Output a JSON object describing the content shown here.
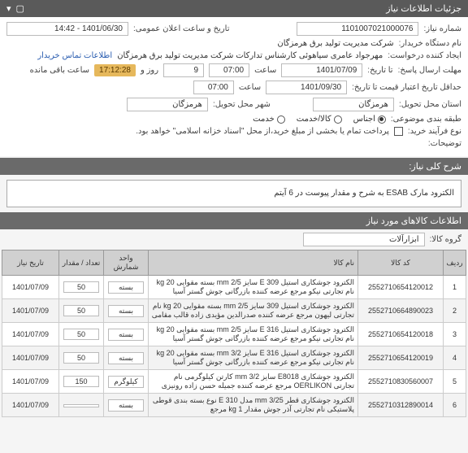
{
  "header": {
    "title": "جزئیات اطلاعات نیاز"
  },
  "form": {
    "need_no_label": "شماره نیاز:",
    "need_no": "1101007021000076",
    "announce_label": "تاریخ و ساعت اعلان عمومی:",
    "announce_value": "1401/06/30 - 14:42",
    "buyer_org_label": "نام دستگاه خریدار:",
    "buyer_org": "شرکت مدیریت تولید برق هرمزگان",
    "requester_label": "ایجاد کننده درخواست:",
    "requester": "مهرجواد عامری سیاهوئی کارشناس تدارکات شرکت مدیریت تولید برق هرمزگان",
    "contact_link": "اطلاعات تماس خریدار",
    "deadline_label": "مهلت ارسال پاسخ:",
    "deadline_to_label": "تا تاریخ:",
    "deadline_date": "1401/07/09",
    "time_label": "ساعت",
    "deadline_time": "07:00",
    "remain_days": "9",
    "remain_days_label": "روز و",
    "countdown": "17:12:28",
    "remain_suffix": "ساعت باقی مانده",
    "validity_label": "حداقل تاریخ اعتبار قیمت تا تاریخ:",
    "validity_date": "1401/09/30",
    "validity_time": "07:00",
    "province_label": "استان محل تحویل:",
    "province": "هرمزگان",
    "city_label": "شهر محل تحویل:",
    "city": "هرمزگان",
    "subject_type_label": "طبقه بندی موضوعی:",
    "radio_goods": "اجناس",
    "radio_goods_service": "کالا/خدمت",
    "radio_service": "خدمت",
    "purchase_type_label": "نوع فرآیند خرید:",
    "checkbox_label": "پرداخت تمام یا بخشی از مبلغ خرید،از محل \"اسناد خزانه اسلامی\" خواهد بود.",
    "info_label": "توضیحات:"
  },
  "need_title": {
    "label": "شرح کلی نیاز:",
    "value": "الکترود مارک ESAB به شرح و مقدار پیوست در 6 آیتم"
  },
  "goods_section": {
    "title": "اطلاعات کالاهای مورد نیاز",
    "group_label": "گروه کالا:",
    "group_value": "ابزارآلات"
  },
  "table": {
    "headers": {
      "idx": "ردیف",
      "code": "کد کالا",
      "name": "نام کالا",
      "unit": "واحد شمارش",
      "qty": "تعداد / مقدار",
      "date": "تاریخ نیاز"
    },
    "rows": [
      {
        "idx": "1",
        "code": "2552710654120012",
        "name": "الکترود جوشکاری استیل E 309 سایز mm 2/5 بسته مقوایی kg 20 نام تجارتی نیکو مرجع عرضه کننده بازرگانی جوش گستر آسیا",
        "unit": "بسته",
        "qty": "50",
        "date": "1401/07/09"
      },
      {
        "idx": "2",
        "code": "2552710664890023",
        "name": "الکترود جوشکاری استیل 309 سایز mm 2/5 بسته مقوایی kg 20 نام تجارتی لیهون مرجع عرضه کننده صدرالدین مؤیدی زاده قالب مقامی",
        "unit": "بسته",
        "qty": "50",
        "date": "1401/07/09"
      },
      {
        "idx": "3",
        "code": "2552710654120018",
        "name": "الکترود جوشکاری استیل E 316 سایز mm 2/5 بسته مقوایی kg 20 نام تجارتی نیکو مرجع عرضه کننده بازرگانی جوش گستر آسیا",
        "unit": "بسته",
        "qty": "50",
        "date": "1401/07/09"
      },
      {
        "idx": "4",
        "code": "2552710654120019",
        "name": "الکترود جوشکاری استیل E 316 سایز mm 3/2 بسته مقوایی kg 20 نام تجارتی نیکو مرجع عرضه کننده بازرگانی جوش گستر آسیا",
        "unit": "بسته",
        "qty": "50",
        "date": "1401/07/09"
      },
      {
        "idx": "5",
        "code": "2552710830560007",
        "name": "الکترود جوشکاری E8018 سایز mm 3/2 کارتن کیلوگرمی نام تجارتی OERLIKON مرجع عرضه کننده جمیله حسن زاده رونیزی",
        "unit": "کیلوگرم",
        "qty": "150",
        "date": "1401/07/09"
      },
      {
        "idx": "6",
        "code": "2552710312890014",
        "name": "الکترود جوشکاری قطر mm 3/25 مدل E 310 نوع بسته بندی قوطی پلاستیکی نام تجارتی آذر جوش مقدار kg 1 مرجع",
        "unit": "بسته",
        "qty": "",
        "date": "1401/07/09"
      }
    ]
  }
}
